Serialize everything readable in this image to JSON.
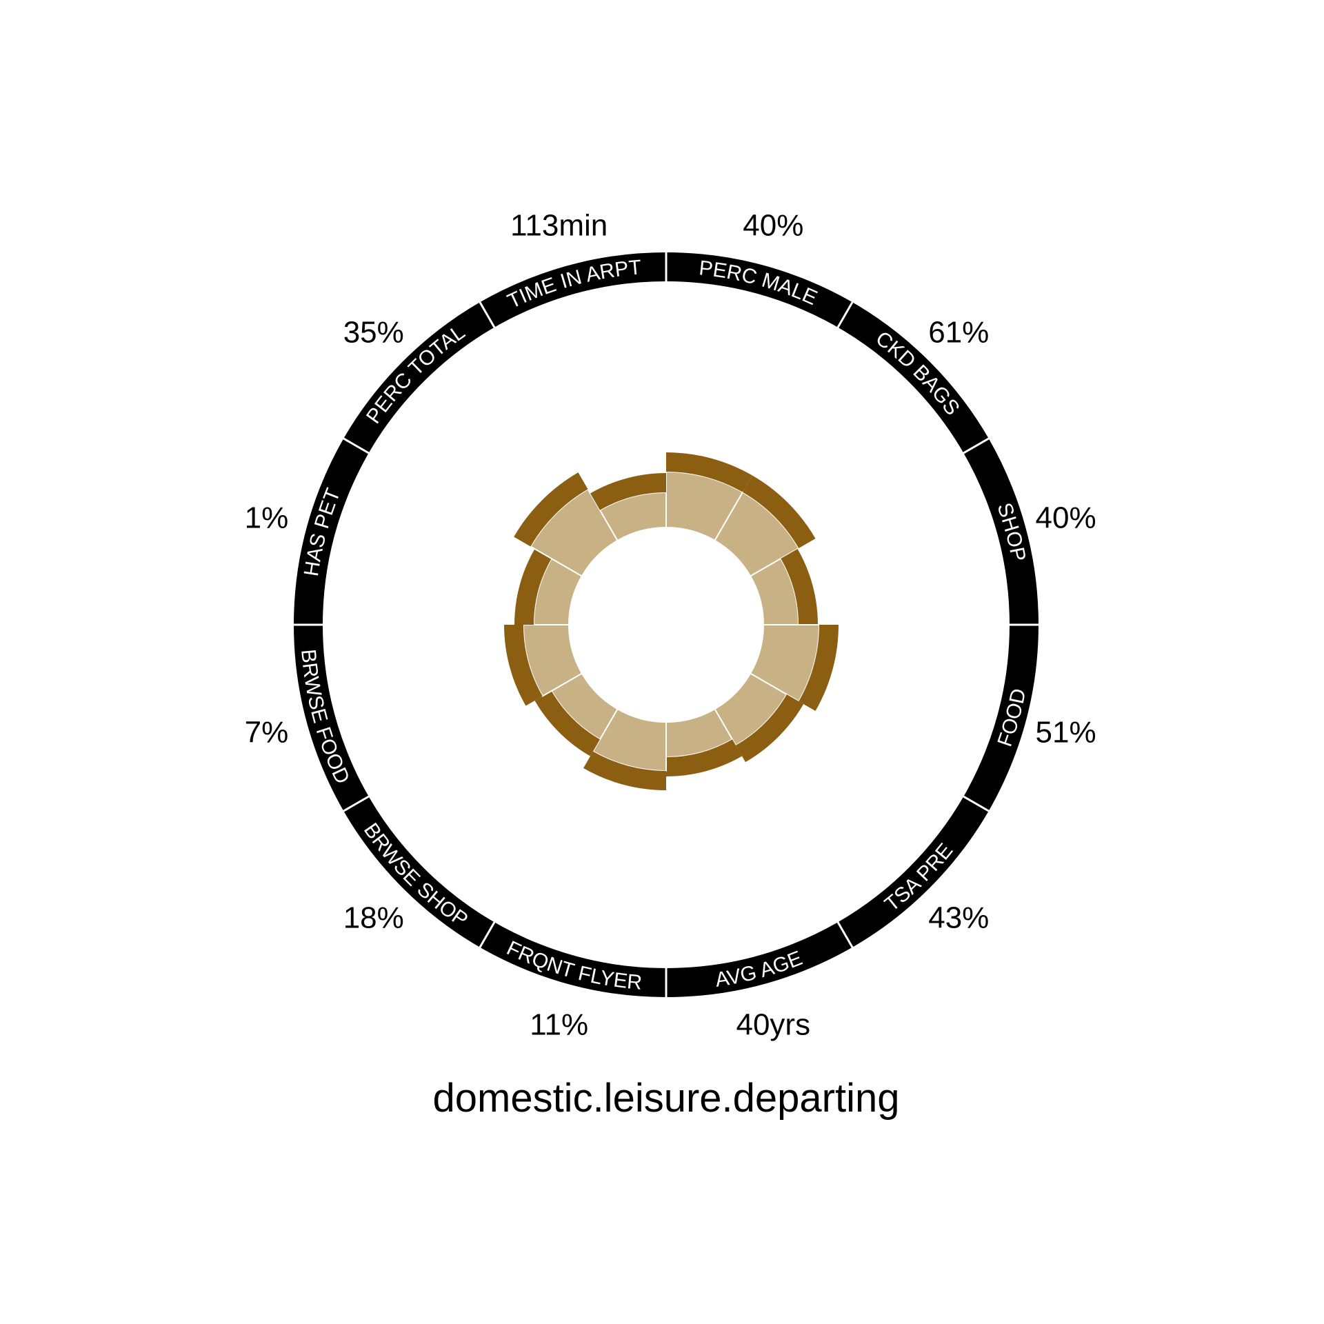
{
  "chart_data": {
    "type": "radial-bar",
    "title": "domestic.leisure.departing",
    "categories": [
      "PERC MALE",
      "CKD BAGS",
      "SHOP",
      "FOOD",
      "TSA PRE",
      "AVG AGE",
      "FRQNT FLYER",
      "BRWSE SHOP",
      "BRWSE FOOD",
      "HAS PET",
      "PERC TOTAL",
      "TIME IN ARPT"
    ],
    "value_labels": [
      "40%",
      "61%",
      "40%",
      "51%",
      "43%",
      "40yrs",
      "11%",
      "18%",
      "7%",
      "1%",
      "35%",
      "113min"
    ],
    "values": [
      40,
      61,
      40,
      51,
      43,
      40,
      11,
      18,
      7,
      1,
      35,
      113
    ],
    "colors": {
      "fill": "#c8b185",
      "cap": "#8b5e12",
      "ring": "#000000",
      "ring_text": "#ffffff",
      "separator": "#ffffff"
    }
  }
}
